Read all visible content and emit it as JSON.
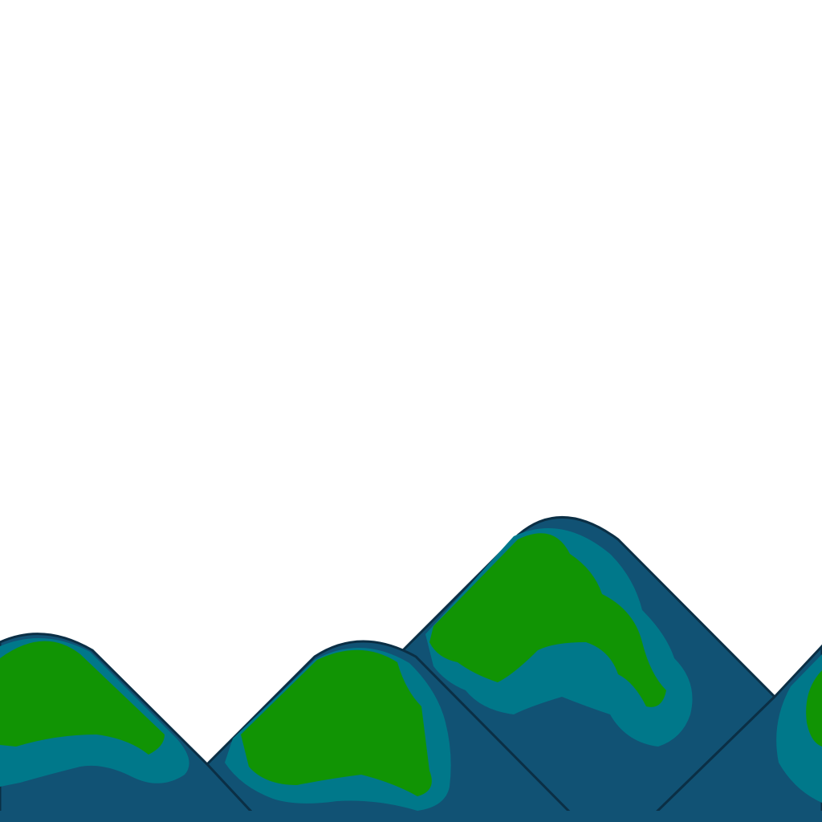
{
  "scene": {
    "background_color": "#ffffff",
    "palette": {
      "deep_blue": "#115274",
      "teal": "#00788a",
      "green": "#119404",
      "outline": "#0b2f45"
    },
    "hills": [
      {
        "name": "hill-left",
        "layers": [
          "deep_blue",
          "teal",
          "green"
        ]
      },
      {
        "name": "hill-middle",
        "layers": [
          "deep_blue",
          "teal",
          "green"
        ]
      },
      {
        "name": "hill-tall",
        "layers": [
          "deep_blue",
          "teal",
          "green"
        ]
      },
      {
        "name": "hill-right-edge",
        "layers": [
          "deep_blue",
          "teal",
          "green"
        ]
      }
    ]
  }
}
